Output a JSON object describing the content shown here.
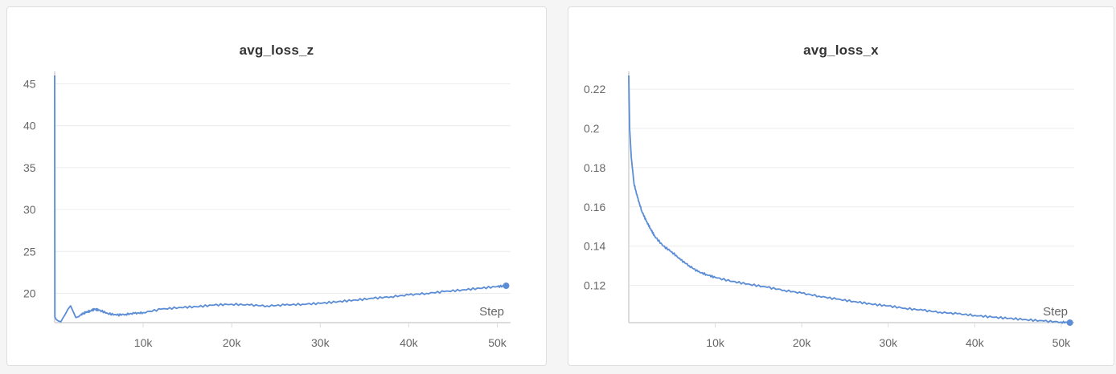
{
  "charts": [
    {
      "title": "avg_loss_z",
      "xlabel": "Step",
      "chart_data": {
        "type": "line",
        "title": "avg_loss_z",
        "xlabel": "Step",
        "ylabel": "",
        "xlim": [
          0,
          51500
        ],
        "ylim": [
          16.5,
          46
        ],
        "x_ticks": [
          {
            "value": 10000,
            "label": "10k"
          },
          {
            "value": 20000,
            "label": "20k"
          },
          {
            "value": 30000,
            "label": "30k"
          },
          {
            "value": 40000,
            "label": "40k"
          },
          {
            "value": 50000,
            "label": "50k"
          }
        ],
        "y_ticks": [
          {
            "value": 20,
            "label": "20"
          },
          {
            "value": 25,
            "label": "25"
          },
          {
            "value": 30,
            "label": "30"
          },
          {
            "value": 35,
            "label": "35"
          },
          {
            "value": 40,
            "label": "40"
          },
          {
            "value": 45,
            "label": "45"
          }
        ],
        "grid": true,
        "series": [
          {
            "color": "#5b8dd6",
            "x": [
              0,
              30,
              150,
              400,
              700,
              900,
              1200,
              1500,
              1800,
              2100,
              2400,
              2700,
              3000,
              3500,
              4000,
              4500,
              5000,
              6000,
              7000,
              8000,
              9000,
              10000,
              12000,
              14000,
              16000,
              18000,
              20000,
              22000,
              24000,
              26000,
              28000,
              30000,
              32000,
              34000,
              36000,
              38000,
              40000,
              42000,
              44000,
              46000,
              48000,
              50000,
              51000
            ],
            "y": [
              46,
              17.2,
              16.9,
              16.7,
              16.6,
              17.0,
              17.5,
              18.1,
              18.5,
              17.8,
              17.1,
              17.2,
              17.5,
              17.7,
              17.9,
              18.1,
              18.0,
              17.6,
              17.4,
              17.5,
              17.6,
              17.7,
              18.1,
              18.3,
              18.4,
              18.6,
              18.7,
              18.6,
              18.5,
              18.6,
              18.7,
              18.8,
              19.0,
              19.2,
              19.4,
              19.6,
              19.8,
              20.0,
              20.2,
              20.4,
              20.6,
              20.8,
              20.9
            ]
          }
        ]
      }
    },
    {
      "title": "avg_loss_x",
      "xlabel": "Step",
      "chart_data": {
        "type": "line",
        "title": "avg_loss_x",
        "xlabel": "Step",
        "ylabel": "",
        "xlim": [
          0,
          51500
        ],
        "ylim": [
          0.101,
          0.227
        ],
        "x_ticks": [
          {
            "value": 10000,
            "label": "10k"
          },
          {
            "value": 20000,
            "label": "20k"
          },
          {
            "value": 30000,
            "label": "30k"
          },
          {
            "value": 40000,
            "label": "40k"
          },
          {
            "value": 50000,
            "label": "50k"
          }
        ],
        "y_ticks": [
          {
            "value": 0.12,
            "label": "0.12"
          },
          {
            "value": 0.14,
            "label": "0.14"
          },
          {
            "value": 0.16,
            "label": "0.16"
          },
          {
            "value": 0.18,
            "label": "0.18"
          },
          {
            "value": 0.2,
            "label": "0.2"
          },
          {
            "value": 0.22,
            "label": "0.22"
          }
        ],
        "grid": true,
        "series": [
          {
            "color": "#5b8dd6",
            "x": [
              0,
              100,
              300,
              600,
              1000,
              1500,
              2000,
              2500,
              3000,
              4000,
              5000,
              6000,
              7000,
              8000,
              9000,
              10000,
              12000,
              14000,
              16000,
              18000,
              20000,
              22000,
              24000,
              26000,
              28000,
              30000,
              32000,
              34000,
              36000,
              38000,
              40000,
              42000,
              44000,
              46000,
              48000,
              50000,
              51000
            ],
            "y": [
              0.227,
              0.2,
              0.185,
              0.172,
              0.165,
              0.158,
              0.153,
              0.149,
              0.145,
              0.14,
              0.137,
              0.133,
              0.13,
              0.127,
              0.1255,
              0.124,
              0.122,
              0.1205,
              0.119,
              0.1175,
              0.116,
              0.1145,
              0.113,
              0.1118,
              0.1105,
              0.1095,
              0.1083,
              0.1073,
              0.1063,
              0.1055,
              0.1047,
              0.1038,
              0.1032,
              0.1025,
              0.1018,
              0.1013,
              0.101
            ]
          }
        ]
      }
    }
  ]
}
